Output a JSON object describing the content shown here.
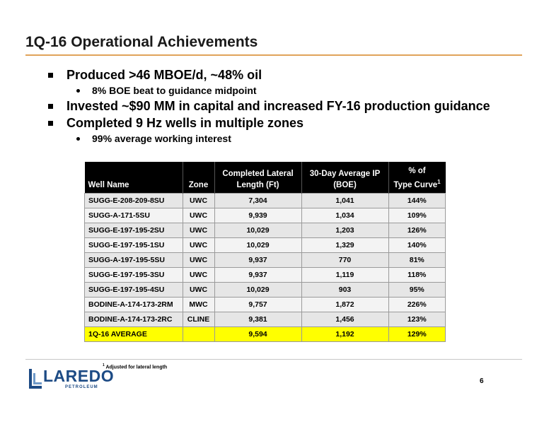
{
  "slide": {
    "title": "1Q-16 Operational Achievements",
    "page_number": "6"
  },
  "bullets": [
    {
      "text": "Produced >46 MBOE/d, ~48% oil",
      "sub": [
        "8% BOE beat to guidance midpoint"
      ]
    },
    {
      "text": "Invested ~$90 MM in capital and increased FY-16 production guidance",
      "sub": []
    },
    {
      "text": "Completed 9 Hz wells in multiple zones",
      "sub": [
        "99% average working interest"
      ]
    }
  ],
  "table": {
    "headers": {
      "well_name": "Well Name",
      "zone": "Zone",
      "lateral_line1": "Completed Lateral",
      "lateral_line2": "Length (Ft)",
      "ip_line1": "30-Day Average IP",
      "ip_line2": "(BOE)",
      "curve_line1": "% of",
      "curve_line2": "Type Curve",
      "curve_sup": "1"
    },
    "rows": [
      [
        "SUGG-E-208-209-8SU",
        "UWC",
        "7,304",
        "1,041",
        "144%"
      ],
      [
        "SUGG-A-171-5SU",
        "UWC",
        "9,939",
        "1,034",
        "109%"
      ],
      [
        "SUGG-E-197-195-2SU",
        "UWC",
        "10,029",
        "1,203",
        "126%"
      ],
      [
        "SUGG-E-197-195-1SU",
        "UWC",
        "10,029",
        "1,329",
        "140%"
      ],
      [
        "SUGG-A-197-195-5SU",
        "UWC",
        "9,937",
        "770",
        "81%"
      ],
      [
        "SUGG-E-197-195-3SU",
        "UWC",
        "9,937",
        "1,119",
        "118%"
      ],
      [
        "SUGG-E-197-195-4SU",
        "UWC",
        "10,029",
        "903",
        "95%"
      ],
      [
        "BODINE-A-174-173-2RM",
        "MWC",
        "9,757",
        "1,872",
        "226%"
      ],
      [
        "BODINE-A-174-173-2RC",
        "CLINE",
        "9,381",
        "1,456",
        "123%"
      ]
    ],
    "average": [
      "1Q-16 AVERAGE",
      "",
      "9,594",
      "1,192",
      "129%"
    ]
  },
  "footnote": {
    "sup": "1",
    "text": "Adjusted for lateral length"
  },
  "logo": {
    "name": "LAREDO",
    "sub": "PETROLEUM"
  },
  "colors": {
    "accent_rule": "#e0a35a",
    "header_bg": "#000000",
    "average_row": "#ffff00",
    "logo_blue": "#1d4b85"
  }
}
